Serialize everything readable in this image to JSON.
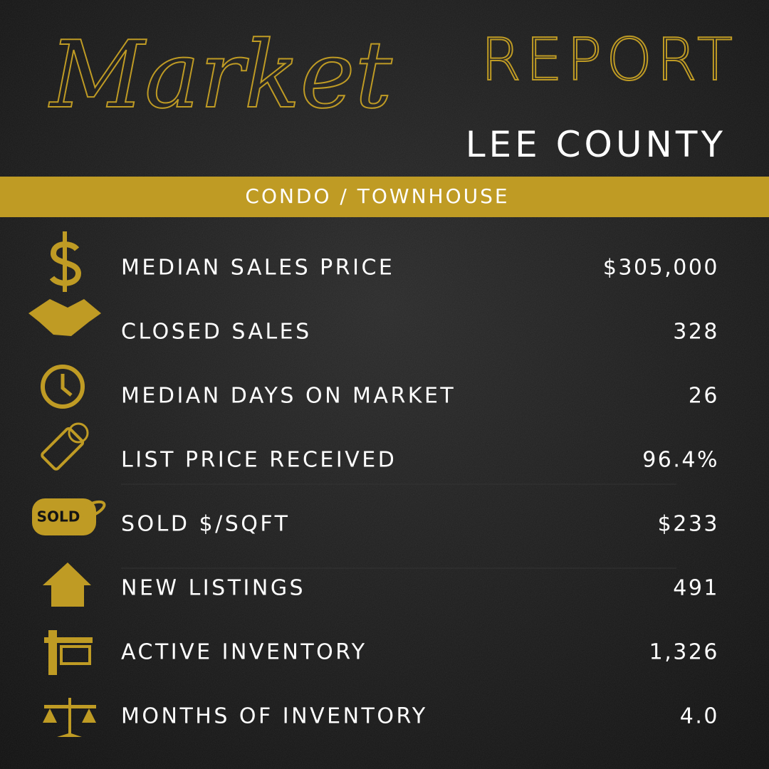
{
  "header": {
    "script": "Market",
    "title": "REPORT",
    "subtitle": "LEE COUNTY"
  },
  "banner": "CONDO / TOWNHOUSE",
  "rows": [
    {
      "label": "MEDIAN SALES PRICE",
      "value": "$305,000"
    },
    {
      "label": "CLOSED SALES",
      "value": "328"
    },
    {
      "label": "MEDIAN DAYS ON MARKET",
      "value": "26"
    },
    {
      "label": "LIST PRICE RECEIVED",
      "value": "96.4%"
    },
    {
      "label": "SOLD $/SQFT",
      "value": "$233",
      "icon_text": "SOLD"
    },
    {
      "label": "NEW LISTINGS",
      "value": "491"
    },
    {
      "label": "ACTIVE INVENTORY",
      "value": "1,326"
    },
    {
      "label": "MONTHS OF INVENTORY",
      "value": "4.0"
    }
  ]
}
